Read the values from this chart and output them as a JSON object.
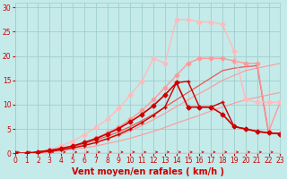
{
  "xlabel": "Vent moyen/en rafales ( km/h )",
  "xlim": [
    0,
    23
  ],
  "ylim": [
    0,
    31
  ],
  "xticks": [
    0,
    1,
    2,
    3,
    4,
    5,
    6,
    7,
    8,
    9,
    10,
    11,
    12,
    13,
    14,
    15,
    16,
    17,
    18,
    19,
    20,
    21,
    22,
    23
  ],
  "yticks": [
    0,
    5,
    10,
    15,
    20,
    25,
    30
  ],
  "bg_color": "#c5eaea",
  "grid_color": "#9ecece",
  "lines": [
    {
      "x": [
        0,
        1,
        2,
        3,
        4,
        5,
        6,
        7,
        8,
        9,
        10,
        11,
        12,
        13,
        14,
        15,
        16,
        17,
        18,
        19,
        20,
        21,
        22,
        23
      ],
      "y": [
        0,
        0,
        0.1,
        0.3,
        0.5,
        0.8,
        1.1,
        1.5,
        2.0,
        2.5,
        3.1,
        3.8,
        4.5,
        5.3,
        6.2,
        7.0,
        7.8,
        8.7,
        9.5,
        10.3,
        11.0,
        11.5,
        12.0,
        12.5
      ],
      "color": "#ff9999",
      "lw": 0.8,
      "marker": null,
      "ms": 0
    },
    {
      "x": [
        0,
        1,
        2,
        3,
        4,
        5,
        6,
        7,
        8,
        9,
        10,
        11,
        12,
        13,
        14,
        15,
        16,
        17,
        18,
        19,
        20,
        21,
        22,
        23
      ],
      "y": [
        0,
        0,
        0.15,
        0.4,
        0.7,
        1.1,
        1.6,
        2.2,
        2.9,
        3.7,
        4.6,
        5.7,
        6.9,
        8.2,
        9.6,
        11.0,
        12.3,
        13.6,
        15.0,
        16.0,
        17.0,
        17.5,
        18.0,
        18.5
      ],
      "color": "#ff9999",
      "lw": 0.8,
      "marker": null,
      "ms": 0
    },
    {
      "x": [
        0,
        1,
        2,
        3,
        4,
        5,
        6,
        7,
        8,
        9,
        10,
        11,
        12,
        13,
        14,
        15,
        16,
        17,
        18,
        19,
        20,
        21,
        22,
        23
      ],
      "y": [
        0,
        0,
        0.2,
        0.5,
        0.9,
        1.5,
        2.2,
        3.1,
        4.2,
        5.4,
        7.0,
        8.8,
        11.0,
        13.5,
        16.0,
        18.5,
        19.5,
        19.5,
        19.5,
        19.0,
        18.5,
        18.5,
        4.5,
        10.5
      ],
      "color": "#ff9999",
      "lw": 1.0,
      "marker": "D",
      "ms": 2.5
    },
    {
      "x": [
        0,
        1,
        2,
        3,
        4,
        5,
        6,
        7,
        8,
        9,
        10,
        11,
        12,
        13,
        14,
        15,
        16,
        17,
        18,
        19,
        20,
        21,
        22,
        23
      ],
      "y": [
        0,
        0,
        0.3,
        0.8,
        1.5,
        2.5,
        3.8,
        5.3,
        7.0,
        9.2,
        12.0,
        14.8,
        19.5,
        18.5,
        27.5,
        27.5,
        27.0,
        27.0,
        26.5,
        21.0,
        11.0,
        10.5,
        10.5,
        10.5
      ],
      "color": "#ffbbbb",
      "lw": 1.0,
      "marker": "D",
      "ms": 2.5
    },
    {
      "x": [
        0,
        1,
        2,
        3,
        4,
        5,
        6,
        7,
        8,
        9,
        10,
        11,
        12,
        13,
        14,
        15,
        16,
        17,
        18,
        19,
        20,
        21,
        22,
        23
      ],
      "y": [
        0,
        0,
        0.2,
        0.5,
        0.9,
        1.4,
        2.0,
        2.7,
        3.5,
        4.4,
        5.5,
        6.7,
        8.0,
        9.5,
        11.0,
        12.5,
        14.0,
        15.5,
        17.0,
        17.5,
        17.8,
        18.0,
        4.0,
        4.2
      ],
      "color": "#ee5555",
      "lw": 0.9,
      "marker": null,
      "ms": 0
    },
    {
      "x": [
        0,
        1,
        2,
        3,
        4,
        5,
        6,
        7,
        8,
        9,
        10,
        11,
        12,
        13,
        14,
        15,
        16,
        17,
        18,
        19,
        20,
        21,
        22,
        23
      ],
      "y": [
        0,
        0,
        0.2,
        0.4,
        0.7,
        1.1,
        1.6,
        2.2,
        3.0,
        3.9,
        5.0,
        6.3,
        7.8,
        9.5,
        14.5,
        14.8,
        9.5,
        9.5,
        10.5,
        5.5,
        5.0,
        4.5,
        4.2,
        4.0
      ],
      "color": "#cc0000",
      "lw": 1.0,
      "marker": "+",
      "ms": 3.5
    },
    {
      "x": [
        0,
        1,
        2,
        3,
        4,
        5,
        6,
        7,
        8,
        9,
        10,
        11,
        12,
        13,
        14,
        15,
        16,
        17,
        18,
        19,
        20,
        21,
        22,
        23
      ],
      "y": [
        0,
        0,
        0.3,
        0.6,
        1.0,
        1.5,
        2.2,
        3.0,
        4.0,
        5.1,
        6.5,
        8.0,
        9.8,
        12.0,
        14.5,
        9.5,
        9.5,
        9.5,
        8.0,
        5.5,
        5.0,
        4.5,
        4.2,
        4.0
      ],
      "color": "#cc0000",
      "lw": 1.2,
      "marker": "D",
      "ms": 2.5
    }
  ],
  "arrow_color": "#cc0000",
  "xlabel_color": "#cc0000",
  "xlabel_fontsize": 7,
  "label_color": "#cc0000",
  "tick_fontsize": 5.5
}
